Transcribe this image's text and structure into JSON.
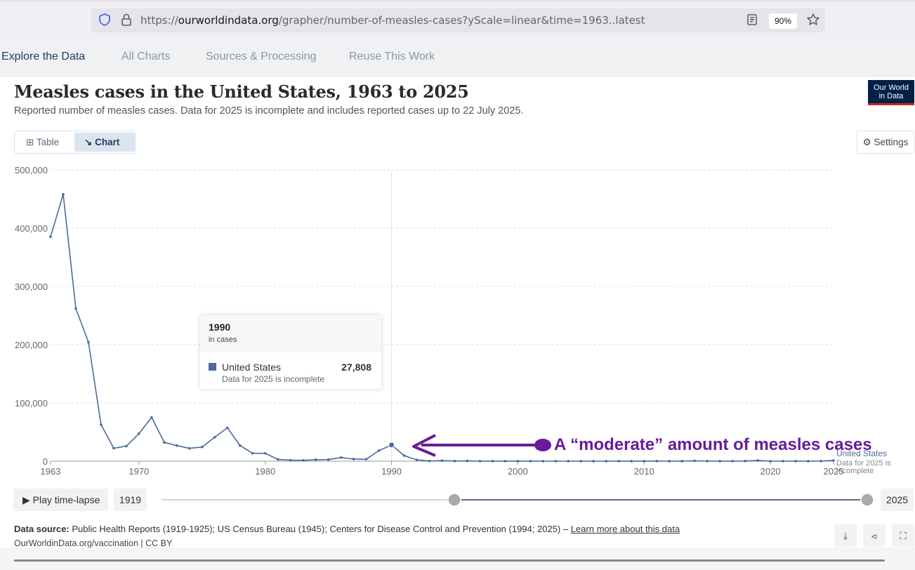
{
  "browser": {
    "url_prefix": "https://",
    "url_domain": "ourworldindata.org",
    "url_path": "/grapher/number-of-measles-cases?yScale=linear&time=1963..latest",
    "zoom": "90%"
  },
  "nav": {
    "items": [
      "Explore the Data",
      "All Charts",
      "Sources & Processing",
      "Reuse This Work"
    ],
    "active": "Explore the Data"
  },
  "header": {
    "title": "Measles cases in the United States, 1963 to 2025",
    "subtitle": "Reported number of measles cases. Data for 2025 is incomplete and includes reported cases up to 22 July 2025.",
    "logo_line1": "Our World",
    "logo_line2": "in Data"
  },
  "controls": {
    "table_label": "Table",
    "chart_label": "Chart",
    "settings_label": "Settings"
  },
  "chart_data": {
    "type": "line",
    "title": "Measles cases in the United States, 1963 to 2025",
    "xlabel": "",
    "ylabel": "",
    "xlim": [
      1963,
      2025
    ],
    "ylim": [
      0,
      500000
    ],
    "yticks": [
      0,
      100000,
      200000,
      300000,
      400000,
      500000
    ],
    "ytick_labels": [
      "0",
      "100,000",
      "200,000",
      "300,000",
      "400,000",
      "500,000"
    ],
    "xticks": [
      1963,
      1970,
      1980,
      1990,
      2000,
      2010,
      2020,
      2025
    ],
    "xtick_labels": [
      "1963",
      "1970",
      "1980",
      "1990",
      "2000",
      "2010",
      "2020",
      "2025"
    ],
    "grid": "horizontal dashed",
    "color": "#4c6a9c",
    "series": [
      {
        "name": "United States",
        "end_label": "United States",
        "end_note": [
          "Data for 2025 is",
          "incomplete"
        ],
        "x": [
          1963,
          1964,
          1965,
          1966,
          1967,
          1968,
          1969,
          1970,
          1971,
          1972,
          1973,
          1974,
          1975,
          1976,
          1977,
          1978,
          1979,
          1980,
          1981,
          1982,
          1983,
          1984,
          1985,
          1986,
          1987,
          1988,
          1989,
          1990,
          1991,
          1992,
          1993,
          1994,
          1995,
          1996,
          1997,
          1998,
          1999,
          2000,
          2001,
          2002,
          2003,
          2004,
          2005,
          2006,
          2007,
          2008,
          2009,
          2010,
          2011,
          2012,
          2013,
          2014,
          2015,
          2016,
          2017,
          2018,
          2019,
          2020,
          2021,
          2022,
          2023,
          2024,
          2025
        ],
        "values": [
          385156,
          458083,
          261904,
          204136,
          62705,
          22231,
          25826,
          47351,
          75290,
          32275,
          26690,
          22094,
          24374,
          41126,
          57345,
          26871,
          13597,
          13506,
          3124,
          1714,
          1497,
          2587,
          2822,
          6282,
          3655,
          3396,
          18193,
          27808,
          9643,
          2237,
          312,
          963,
          309,
          508,
          138,
          100,
          100,
          86,
          116,
          44,
          56,
          37,
          66,
          55,
          43,
          140,
          71,
          63,
          220,
          55,
          187,
          667,
          188,
          86,
          120,
          375,
          1282,
          13,
          49,
          121,
          59,
          285,
          1300
        ]
      }
    ],
    "highlight": {
      "year": "1990",
      "value": 27808
    },
    "annotation": "A “moderate” amount of measles cases"
  },
  "tooltip": {
    "year": "1990",
    "unit": "in cases",
    "entity": "United States",
    "value": "27,808",
    "note": "Data for 2025 is incomplete"
  },
  "timeline": {
    "play_label": "Play time-lapse",
    "start_year": "1919",
    "end_year": "2025"
  },
  "footer": {
    "source_label": "Data source:",
    "source_text": " Public Health Reports (1919-1925); US Census Bureau (1945); Centers for Disease Control and Prevention (1994; 2025) – ",
    "learn_more": "Learn more about this data",
    "license": "OurWorldinData.org/vaccination | CC BY"
  },
  "colors": {
    "series": "#4c6a9c",
    "annotation": "#6a1b9a",
    "logo_bg": "#002147",
    "logo_accent": "#ce261e"
  }
}
